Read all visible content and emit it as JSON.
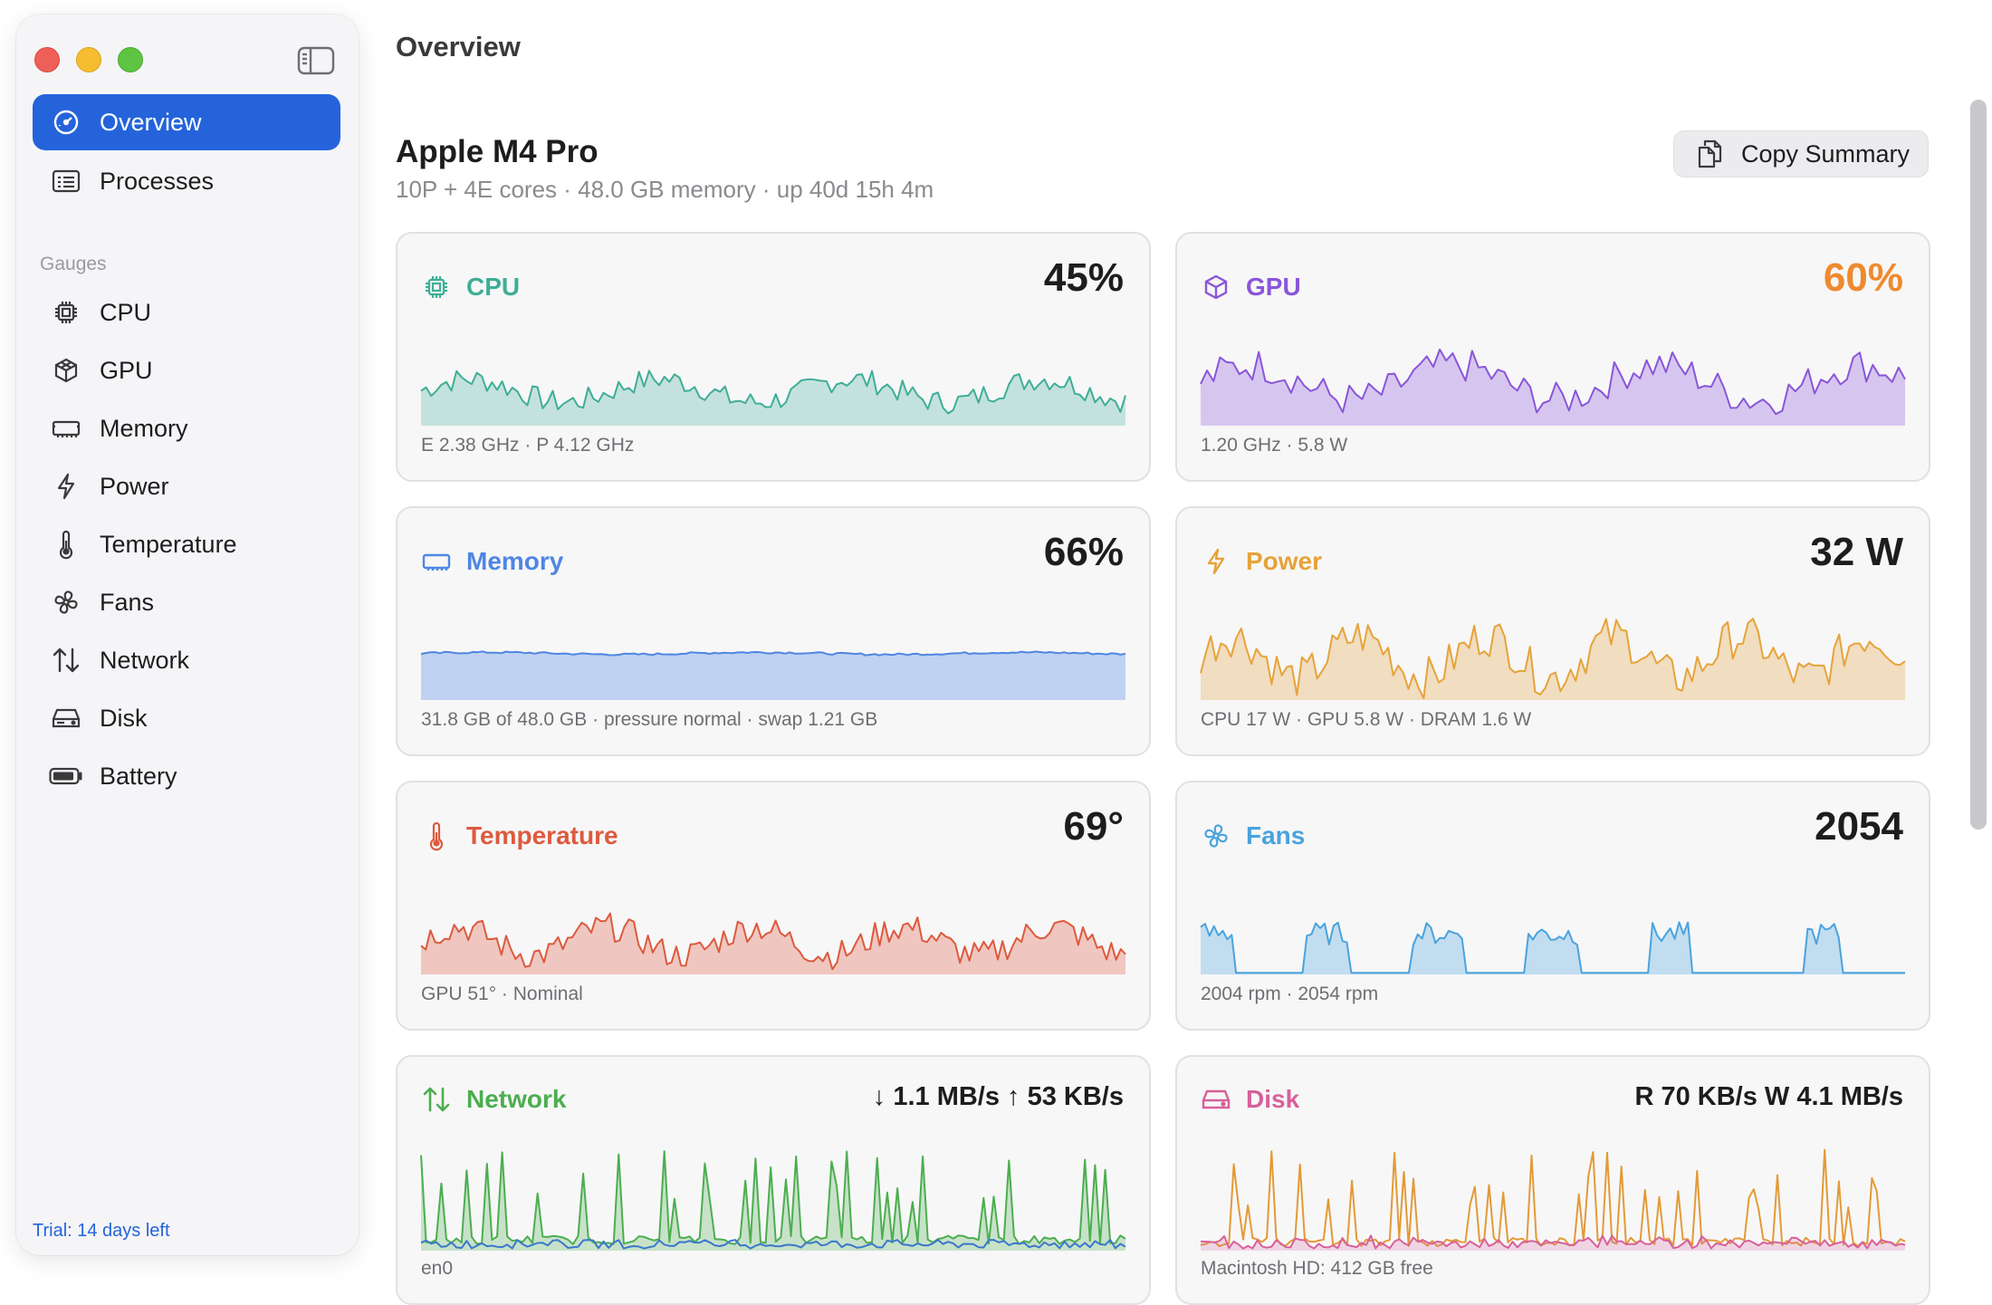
{
  "app": {
    "page_title": "Overview",
    "trial": "Trial: 14 days left"
  },
  "sidebar": {
    "nav": [
      {
        "label": "Overview",
        "icon": "gauge-icon",
        "active": true
      },
      {
        "label": "Processes",
        "icon": "list-icon",
        "active": false
      }
    ],
    "section": "Gauges",
    "gauges": [
      {
        "label": "CPU",
        "icon": "cpu-chip-icon"
      },
      {
        "label": "GPU",
        "icon": "gpu-cube-icon"
      },
      {
        "label": "Memory",
        "icon": "memory-icon"
      },
      {
        "label": "Power",
        "icon": "bolt-icon"
      },
      {
        "label": "Temperature",
        "icon": "thermometer-icon"
      },
      {
        "label": "Fans",
        "icon": "fan-icon"
      },
      {
        "label": "Network",
        "icon": "arrows-updown-icon"
      },
      {
        "label": "Disk",
        "icon": "drive-icon"
      },
      {
        "label": "Battery",
        "icon": "battery-icon"
      }
    ]
  },
  "header": {
    "chip": "Apple M4 Pro",
    "subtitle": "10P + 4E cores · 48.0 GB memory · up 40d 15h 4m",
    "copy_label": "Copy Summary"
  },
  "colors": {
    "accent": "#2563db",
    "cpu": "#3fae96",
    "gpu": "#8a56d9",
    "gpu_value": "#ef8a2e",
    "memory": "#4f86e3",
    "power": "#e6a33a",
    "temperature": "#dd5a3e",
    "fans": "#4aa3dd",
    "network": "#4cae4f",
    "disk": "#d8609a"
  },
  "cards": {
    "cpu": {
      "title": "CPU",
      "value": "45%",
      "footer": "E 2.38 GHz · P 4.12 GHz",
      "level": 0.45
    },
    "gpu": {
      "title": "GPU",
      "value": "60%",
      "footer": "1.20 GHz · 5.8 W",
      "level": 0.6
    },
    "memory": {
      "title": "Memory",
      "value": "66%",
      "footer": "31.8 GB of 48.0 GB · pressure normal · swap 1.21 GB",
      "level": 0.66
    },
    "power": {
      "title": "Power",
      "value": "32 W",
      "footer": "CPU 17 W · GPU 5.8 W · DRAM 1.6 W"
    },
    "temperature": {
      "title": "Temperature",
      "value": "69°",
      "footer": "GPU 51° · Nominal"
    },
    "fans": {
      "title": "Fans",
      "value": "2054",
      "footer": "2004 rpm · 2054 rpm"
    },
    "network": {
      "title": "Network",
      "value": "↓ 1.1 MB/s  ↑ 53 KB/s",
      "footer": "en0"
    },
    "disk": {
      "title": "Disk",
      "value": "R 70 KB/s  W 4.1 MB/s",
      "footer": "Macintosh HD: 412 GB free"
    }
  }
}
